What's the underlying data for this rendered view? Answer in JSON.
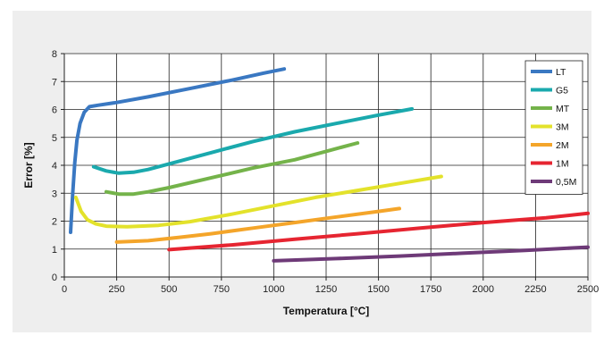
{
  "chart_data": {
    "type": "line",
    "title": "",
    "xlabel": "Temperatura [°C]",
    "ylabel": "Error [%]",
    "xlim": [
      0,
      2500
    ],
    "ylim": [
      0,
      8
    ],
    "xticks": [
      0,
      250,
      500,
      750,
      1000,
      1250,
      1500,
      1750,
      2000,
      2250,
      2500
    ],
    "yticks": [
      0,
      1,
      2,
      3,
      4,
      5,
      6,
      7,
      8
    ],
    "grid": true,
    "legend_position": "top-right",
    "series": [
      {
        "name": "LT",
        "color": "#3a78c2",
        "points": [
          [
            30,
            1.6
          ],
          [
            40,
            3.0
          ],
          [
            50,
            4.1
          ],
          [
            60,
            4.9
          ],
          [
            75,
            5.5
          ],
          [
            95,
            5.9
          ],
          [
            120,
            6.1
          ],
          [
            160,
            6.15
          ],
          [
            250,
            6.25
          ],
          [
            400,
            6.45
          ],
          [
            600,
            6.75
          ],
          [
            800,
            7.05
          ],
          [
            950,
            7.3
          ],
          [
            1050,
            7.45
          ]
        ]
      },
      {
        "name": "G5",
        "color": "#1aa9ad",
        "points": [
          [
            140,
            3.95
          ],
          [
            200,
            3.8
          ],
          [
            260,
            3.72
          ],
          [
            330,
            3.75
          ],
          [
            400,
            3.85
          ],
          [
            500,
            4.05
          ],
          [
            700,
            4.45
          ],
          [
            900,
            4.85
          ],
          [
            1100,
            5.2
          ],
          [
            1300,
            5.5
          ],
          [
            1500,
            5.8
          ],
          [
            1660,
            6.02
          ]
        ]
      },
      {
        "name": "MT",
        "color": "#74b34a",
        "points": [
          [
            200,
            3.05
          ],
          [
            260,
            2.97
          ],
          [
            330,
            2.97
          ],
          [
            400,
            3.05
          ],
          [
            500,
            3.2
          ],
          [
            700,
            3.55
          ],
          [
            900,
            3.9
          ],
          [
            1100,
            4.2
          ],
          [
            1250,
            4.5
          ],
          [
            1400,
            4.8
          ]
        ]
      },
      {
        "name": "3M",
        "color": "#e3e22b",
        "points": [
          [
            55,
            2.85
          ],
          [
            80,
            2.35
          ],
          [
            110,
            2.05
          ],
          [
            150,
            1.9
          ],
          [
            200,
            1.82
          ],
          [
            300,
            1.8
          ],
          [
            450,
            1.85
          ],
          [
            600,
            1.98
          ],
          [
            800,
            2.25
          ],
          [
            1000,
            2.55
          ],
          [
            1200,
            2.85
          ],
          [
            1400,
            3.1
          ],
          [
            1600,
            3.35
          ],
          [
            1800,
            3.6
          ]
        ]
      },
      {
        "name": "2M",
        "color": "#f4a52a",
        "points": [
          [
            250,
            1.25
          ],
          [
            400,
            1.3
          ],
          [
            550,
            1.42
          ],
          [
            700,
            1.55
          ],
          [
            900,
            1.75
          ],
          [
            1100,
            1.95
          ],
          [
            1300,
            2.15
          ],
          [
            1500,
            2.35
          ],
          [
            1600,
            2.45
          ]
        ]
      },
      {
        "name": "1M",
        "color": "#e62531",
        "points": [
          [
            500,
            0.98
          ],
          [
            800,
            1.15
          ],
          [
            1100,
            1.35
          ],
          [
            1400,
            1.55
          ],
          [
            1700,
            1.75
          ],
          [
            2000,
            1.95
          ],
          [
            2300,
            2.12
          ],
          [
            2500,
            2.28
          ]
        ]
      },
      {
        "name": "0,5M",
        "color": "#6e3a78",
        "points": [
          [
            1000,
            0.58
          ],
          [
            1300,
            0.66
          ],
          [
            1600,
            0.75
          ],
          [
            1900,
            0.85
          ],
          [
            2200,
            0.95
          ],
          [
            2500,
            1.07
          ]
        ]
      }
    ]
  }
}
